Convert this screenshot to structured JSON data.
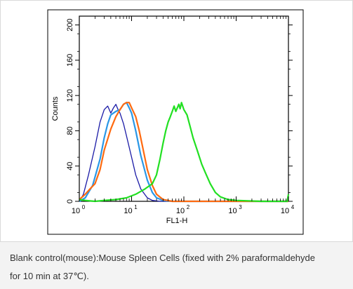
{
  "chart_data": {
    "type": "line",
    "title": "",
    "xlabel": "FL1-H",
    "ylabel": "Counts",
    "xscale": "log",
    "xlim": [
      1,
      10000
    ],
    "ylim": [
      0,
      210
    ],
    "x_ticks": [
      {
        "value": 1,
        "base": "10",
        "exp": "0"
      },
      {
        "value": 10,
        "base": "10",
        "exp": "1"
      },
      {
        "value": 100,
        "base": "10",
        "exp": "2"
      },
      {
        "value": 1000,
        "base": "10",
        "exp": "3"
      },
      {
        "value": 10000,
        "base": "10",
        "exp": "4"
      }
    ],
    "y_ticks": [
      0,
      40,
      80,
      120,
      160,
      200
    ],
    "grid": false,
    "legend": "none",
    "series": [
      {
        "color": "#1a1aa6",
        "points": [
          [
            1,
            0
          ],
          [
            1.2,
            8
          ],
          [
            1.5,
            30
          ],
          [
            2,
            62
          ],
          [
            2.5,
            90
          ],
          [
            3,
            104
          ],
          [
            3.5,
            108
          ],
          [
            4,
            100
          ],
          [
            4.5,
            106
          ],
          [
            5,
            110
          ],
          [
            5.5,
            104
          ],
          [
            6,
            100
          ],
          [
            7,
            88
          ],
          [
            8,
            74
          ],
          [
            10,
            50
          ],
          [
            12,
            30
          ],
          [
            15,
            14
          ],
          [
            20,
            4
          ],
          [
            25,
            1
          ],
          [
            35,
            0
          ],
          [
            10000,
            0
          ]
        ]
      },
      {
        "color": "#2a97e6",
        "points": [
          [
            1,
            0
          ],
          [
            1.3,
            4
          ],
          [
            1.8,
            18
          ],
          [
            2.5,
            48
          ],
          [
            3,
            72
          ],
          [
            3.5,
            88
          ],
          [
            4,
            98
          ],
          [
            5,
            102
          ],
          [
            6,
            104
          ],
          [
            7,
            110
          ],
          [
            8,
            112
          ],
          [
            9,
            106
          ],
          [
            10,
            100
          ],
          [
            12,
            80
          ],
          [
            15,
            52
          ],
          [
            20,
            24
          ],
          [
            25,
            10
          ],
          [
            30,
            4
          ],
          [
            40,
            1
          ],
          [
            60,
            0
          ],
          [
            10000,
            0
          ]
        ]
      },
      {
        "color": "#ff6a10",
        "points": [
          [
            1,
            2
          ],
          [
            1.3,
            8
          ],
          [
            1.6,
            14
          ],
          [
            2,
            20
          ],
          [
            2.5,
            36
          ],
          [
            3,
            58
          ],
          [
            4,
            82
          ],
          [
            5,
            96
          ],
          [
            6,
            104
          ],
          [
            7,
            110
          ],
          [
            8,
            112
          ],
          [
            9,
            112
          ],
          [
            10,
            106
          ],
          [
            12,
            96
          ],
          [
            14,
            80
          ],
          [
            17,
            56
          ],
          [
            20,
            36
          ],
          [
            25,
            18
          ],
          [
            30,
            8
          ],
          [
            40,
            2
          ],
          [
            60,
            0
          ],
          [
            10000,
            0
          ]
        ]
      },
      {
        "color": "#22e022",
        "points": [
          [
            1,
            2
          ],
          [
            1.3,
            1
          ],
          [
            2,
            0
          ],
          [
            3,
            1
          ],
          [
            5,
            2
          ],
          [
            8,
            4
          ],
          [
            12,
            8
          ],
          [
            18,
            14
          ],
          [
            25,
            20
          ],
          [
            30,
            30
          ],
          [
            35,
            48
          ],
          [
            40,
            66
          ],
          [
            45,
            80
          ],
          [
            50,
            90
          ],
          [
            55,
            96
          ],
          [
            60,
            102
          ],
          [
            65,
            108
          ],
          [
            70,
            102
          ],
          [
            75,
            106
          ],
          [
            80,
            110
          ],
          [
            85,
            105
          ],
          [
            90,
            112
          ],
          [
            95,
            108
          ],
          [
            100,
            104
          ],
          [
            115,
            98
          ],
          [
            130,
            86
          ],
          [
            150,
            72
          ],
          [
            180,
            58
          ],
          [
            220,
            42
          ],
          [
            260,
            32
          ],
          [
            320,
            20
          ],
          [
            400,
            10
          ],
          [
            500,
            5
          ],
          [
            700,
            2
          ],
          [
            1000,
            1
          ],
          [
            3000,
            0
          ],
          [
            9500,
            0
          ],
          [
            10000,
            8
          ]
        ]
      }
    ]
  },
  "caption": {
    "line1": "Blank control(mouse):Mouse Spleen Cells (fixed with 2% paraformaldehyde",
    "line2": "for 10 min at 37℃)."
  }
}
